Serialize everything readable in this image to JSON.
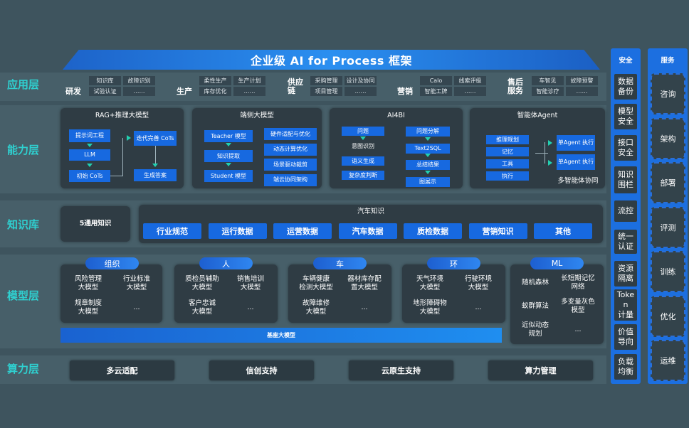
{
  "title": "企业级 AI for Process 框架",
  "layers": {
    "app": "应用层",
    "capability": "能力层",
    "knowledge": "知识库",
    "model": "模型层",
    "compute": "算力层"
  },
  "app_groups": [
    {
      "name": "研发",
      "items": [
        "知识库",
        "故障识别",
        "试验认证",
        "……"
      ]
    },
    {
      "name": "生产",
      "items": [
        "柔性生产",
        "生产计划",
        "库存优化",
        "……"
      ]
    },
    {
      "name": "供应链",
      "items": [
        "采购管理",
        "设计及协同",
        "项目管理",
        "……"
      ]
    },
    {
      "name": "营销",
      "items": [
        "Calo",
        "线索评级",
        "智能工牌",
        "……"
      ]
    },
    {
      "name": "售后服务",
      "items": [
        "车智见",
        "故障预警",
        "智能诊疗",
        "……"
      ]
    }
  ],
  "capability": {
    "rag": {
      "title": "RAG+推理大模型",
      "boxes": [
        "提示词工程",
        "LLM",
        "初始 CoTs",
        "迭代完善 CoTs",
        "生成答案"
      ]
    },
    "edge": {
      "title": "端侧大模型",
      "left": [
        "Teacher 模型",
        "知识提取",
        "Student 模型"
      ],
      "right": [
        "硬件适配与优化",
        "动态计算优化",
        "场景驱动裁剪",
        "端云协同架构"
      ]
    },
    "ai4bi": {
      "title": "AI4BI",
      "left": [
        "问题",
        "意图识别",
        "语义生成",
        "复杂度判断"
      ],
      "right": [
        "问题分解",
        "Text2SQL",
        "总结结果",
        "图展示"
      ]
    },
    "agent": {
      "title": "智能体Agent",
      "left": [
        "推理规划",
        "记忆",
        "工具",
        "执行"
      ],
      "right": [
        "单Agent 执行",
        "单Agent 执行"
      ],
      "footer": "多智能体协同"
    }
  },
  "knowledge": {
    "general": "5通用知识",
    "auto_title": "汽车知识",
    "items": [
      "行业规范",
      "运行数据",
      "运营数据",
      "汽车数据",
      "质检数据",
      "营销知识",
      "其他"
    ]
  },
  "models": {
    "groups": [
      {
        "name": "组织",
        "items": [
          "风险管理\n大模型",
          "行业标准\n大模型",
          "规章制度\n大模型",
          "..."
        ]
      },
      {
        "name": "人",
        "items": [
          "质检员辅助\n大模型",
          "销售培训\n大模型",
          "客户忠诚\n大模型",
          "..."
        ]
      },
      {
        "name": "车",
        "items": [
          "车辆健康\n检测大模型",
          "器材库存配\n置大模型",
          "故障维修\n大模型",
          "..."
        ]
      },
      {
        "name": "环",
        "items": [
          "天气环境\n大模型",
          "行驶环境\n大模型",
          "地形障碍物\n大模型",
          "..."
        ]
      }
    ],
    "ml": {
      "name": "ML",
      "items": [
        "随机森林",
        "长短期记忆\n网络",
        "蚁群算法",
        "多变量灰色\n模型",
        "近似动态\n规划",
        "..."
      ]
    },
    "base": "基座大模型"
  },
  "compute": [
    "多云适配",
    "信创支持",
    "云原生支持",
    "算力管理"
  ],
  "security": {
    "title": "安全",
    "items": [
      "数据\n备份",
      "模型\n安全",
      "接口\n安全",
      "知识\n围栏",
      "流控",
      "统一\n认证",
      "资源\n隔离",
      "Toke\nn\n计量",
      "价值\n导向",
      "负载\n均衡"
    ]
  },
  "service": {
    "title": "服务",
    "items": [
      "咨询",
      "架构",
      "部署",
      "评测",
      "训练",
      "优化",
      "运维"
    ]
  },
  "colors": {
    "background": "#3e545e",
    "accent_blue": "#1769e0",
    "layer_label": "#2fd0d0",
    "panel": "#2f3c44"
  }
}
